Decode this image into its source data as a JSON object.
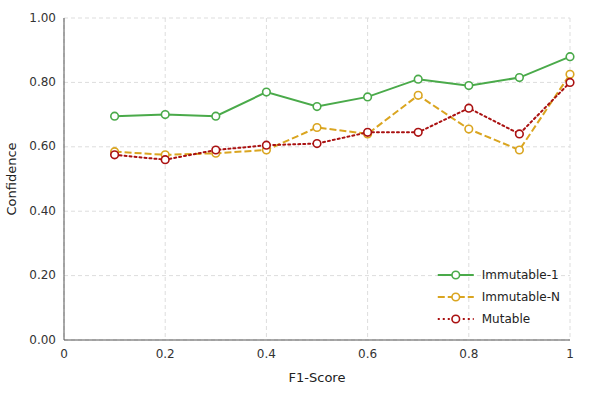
{
  "chart_data": {
    "type": "line",
    "x": [
      0.1,
      0.2,
      0.3,
      0.4,
      0.5,
      0.6,
      0.7,
      0.8,
      0.9,
      1.0
    ],
    "series": [
      {
        "name": "Immutable-1",
        "color": "#4aaa4a",
        "line_style": "solid",
        "marker": "circle",
        "values": [
          0.695,
          0.7,
          0.695,
          0.77,
          0.725,
          0.755,
          0.81,
          0.79,
          0.815,
          0.88
        ]
      },
      {
        "name": "Immutable-N",
        "color": "#daa520",
        "line_style": "dashed",
        "marker": "circle",
        "values": [
          0.585,
          0.575,
          0.58,
          0.59,
          0.66,
          0.64,
          0.76,
          0.655,
          0.59,
          0.825
        ]
      },
      {
        "name": "Mutable",
        "color": "#aa1111",
        "line_style": "dotted",
        "marker": "circle",
        "values": [
          0.575,
          0.56,
          0.59,
          0.605,
          0.61,
          0.645,
          0.645,
          0.72,
          0.64,
          0.8
        ]
      }
    ],
    "xlabel": "F1-Score",
    "ylabel": "Confidence",
    "xlim": [
      0,
      1.0
    ],
    "ylim": [
      0.0,
      1.0
    ],
    "xticks": [
      0,
      0.2,
      0.4,
      0.6,
      0.8,
      1
    ],
    "yticks": [
      {
        "value": 0,
        "label": "0.00"
      },
      {
        "value": 0.2,
        "label": "0.20"
      },
      {
        "value": 0.4,
        "label": "0.40"
      },
      {
        "value": 0.6,
        "label": "0.60"
      },
      {
        "value": 0.8,
        "label": "0.80"
      },
      {
        "value": 1,
        "label": "1.00"
      }
    ],
    "grid": true,
    "legend": "lower right"
  }
}
